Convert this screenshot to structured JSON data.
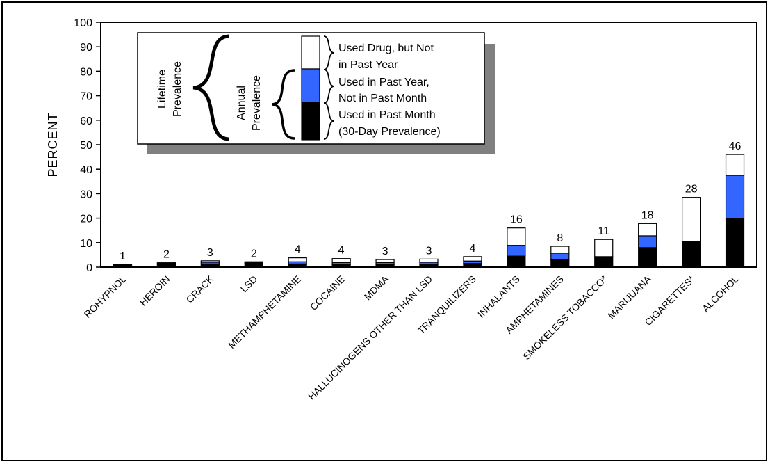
{
  "chart_data": {
    "type": "bar",
    "stacked": true,
    "ylabel": "PERCENT",
    "ylim": [
      0,
      100
    ],
    "yticks": [
      0,
      10,
      20,
      30,
      40,
      50,
      60,
      70,
      80,
      90,
      100
    ],
    "grid": false,
    "categories": [
      "ROHYPNOL",
      "HEROIN",
      "CRACK",
      "LSD",
      "METHAMPHETAMINE",
      "COCAINE",
      "MDMA",
      "HALLUCINOGENS OTHER THAN LSD",
      "TRANQUILIZERS",
      "INHALANTS",
      "AMPHETAMINES",
      "SMOKELESS TOBACCO*",
      "MARIJUANA",
      "CIGARETTES*",
      "ALCOHOL"
    ],
    "series": [
      {
        "name": "Used in Past Month (30-Day Prevalence)",
        "color": "#000000",
        "values": [
          0.8,
          1.2,
          1.3,
          1.6,
          1.3,
          1.0,
          1.0,
          1.1,
          1.5,
          4.5,
          3.0,
          4.3,
          8.0,
          10.5,
          20.0
        ]
      },
      {
        "name": "Used in Past Year, Not in Past Month",
        "color": "#3366ff",
        "values": [
          0.2,
          0.3,
          0.7,
          0.3,
          0.9,
          0.9,
          0.9,
          0.9,
          1.0,
          4.4,
          2.7,
          0.0,
          4.8,
          0.0,
          17.5
        ]
      },
      {
        "name": "Used Drug, but Not in Past Year",
        "color": "#ffffff",
        "values": [
          0.2,
          0.3,
          0.6,
          0.3,
          1.6,
          1.6,
          1.2,
          1.3,
          1.8,
          7.1,
          2.8,
          7.0,
          5.0,
          18.0,
          8.5
        ]
      }
    ],
    "value_labels": [
      "1",
      "2",
      "3",
      "2",
      "4",
      "4",
      "3",
      "3",
      "4",
      "16",
      "8",
      "11",
      "18",
      "28",
      "46"
    ]
  },
  "legend": {
    "lifetime_line1": "Lifetime",
    "lifetime_line2": "Prevalence",
    "annual_line1": "Annual",
    "annual_line2": "Prevalence",
    "item1_line1": "Used Drug, but Not",
    "item1_line2": "in Past Year",
    "item2_line1": "Used in Past Year,",
    "item2_line2": "Not in Past Month",
    "item3_line1": "Used in Past Month",
    "item3_line2": "(30-Day Prevalence)"
  },
  "colors": {
    "past_month": "#000000",
    "past_year": "#3366ff",
    "lifetime": "#ffffff",
    "legend_shadow": "#808080"
  }
}
